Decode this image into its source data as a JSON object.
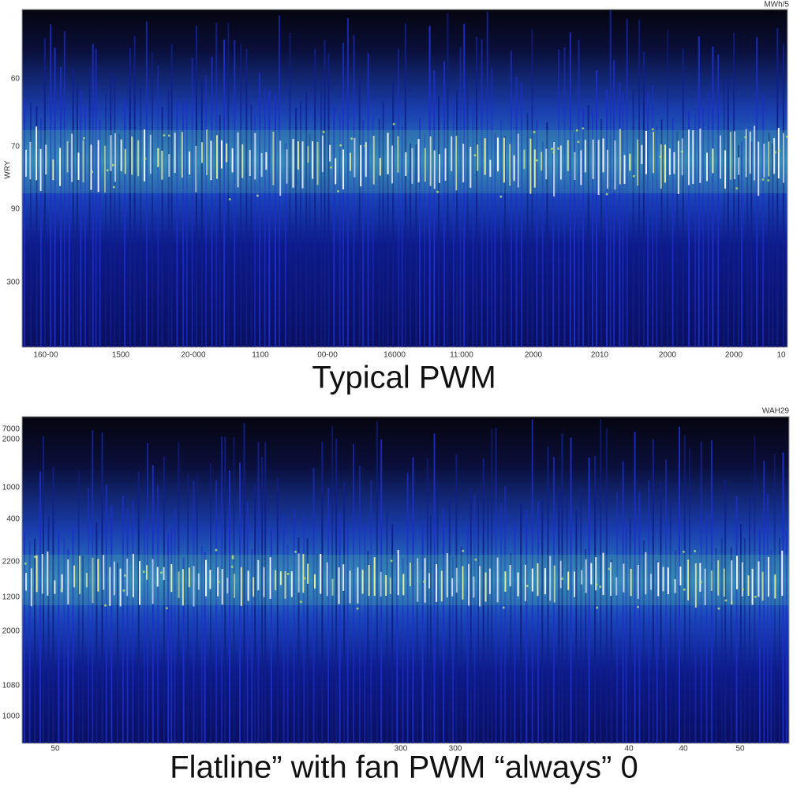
{
  "panels": [
    {
      "corner_label": "MWh/5",
      "axis_title": "WRY",
      "y_labels": [
        "60",
        "70",
        "90",
        "300"
      ],
      "x_labels": [
        "160-00",
        "1500",
        "20-000",
        "1100",
        "00-00",
        "16000",
        "11:000",
        "2000",
        "2010",
        "2000",
        "2000",
        "10"
      ],
      "caption": "Typical    PWM"
    },
    {
      "corner_label": "WAH29",
      "y_labels": [
        "7000",
        "2000",
        "1000",
        "400",
        "2200",
        "1200",
        "2000",
        "1080",
        "1000"
      ],
      "x_labels": [
        "50",
        "300",
        "300",
        "40",
        "40",
        "50"
      ],
      "caption": "Flatline”   with   fan  PWM  “always”  0"
    }
  ]
}
